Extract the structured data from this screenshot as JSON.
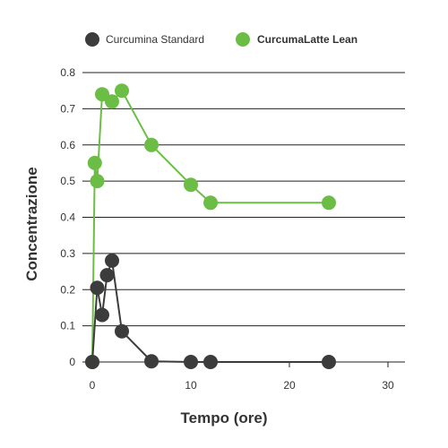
{
  "chart_data": {
    "type": "line",
    "title": "",
    "xlabel": "Tempo (ore)",
    "ylabel": "Concentrazione",
    "xlim": [
      0,
      30
    ],
    "ylim": [
      0,
      0.8
    ],
    "x_ticks": [
      0,
      10,
      20,
      30
    ],
    "y_ticks": [
      0,
      0.1,
      0.2,
      0.3,
      0.4,
      0.5,
      0.6,
      0.7,
      0.8
    ],
    "grid": "horizontal",
    "legend_position": "top",
    "series": [
      {
        "name": "Curcumina Standard",
        "color": "#3c3c3c",
        "x": [
          0,
          0.5,
          1,
          1.5,
          2,
          3,
          6,
          10,
          12,
          24
        ],
        "y": [
          0,
          0.205,
          0.13,
          0.24,
          0.28,
          0.085,
          0.002,
          0.0,
          0.0,
          0.0
        ]
      },
      {
        "name": "CurcumaLatte Lean",
        "color": "#6cbd45",
        "x": [
          0,
          0.25,
          0.5,
          1,
          2,
          3,
          6,
          10,
          12,
          24
        ],
        "y": [
          0,
          0.55,
          0.5,
          0.74,
          0.72,
          0.75,
          0.6,
          0.49,
          0.44,
          0.44
        ]
      }
    ]
  }
}
